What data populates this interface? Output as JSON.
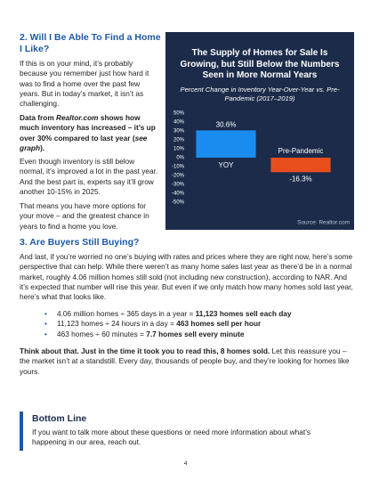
{
  "section2": {
    "heading": "2. Will I Be Able To Find a Home I Like?",
    "paragraphs": [
      [
        "If this is on your mind, it’s probably because you remember just how hard it was to find a home over the past few years. But in today’s market, it isn’t as challenging."
      ],
      [
        "Data from ",
        "Realtor.com",
        " shows how much inventory has increased – it’s up over 30% compared to last year (",
        "see graph",
        ")."
      ],
      [
        "Even though inventory is still below normal, it’s improved a lot in the past year. And the best part is, experts say it’ll grow another 10-15% in 2025."
      ],
      [
        "That means you have more options for your move – and  the greatest chance in years to find a home you love."
      ]
    ]
  },
  "chart": {
    "type": "bar",
    "title": "The Supply of Homes for Sale Is Growing, but Still Below the Numbers Seen in More Normal Years",
    "subtitle": "Percent Change in Inventory Year-Over-Year vs. Pre-Pandemic (2017–2019)",
    "categories": [
      "YOY",
      "Pre-Pandemic"
    ],
    "values": [
      30.6,
      -16.3
    ],
    "value_labels": [
      "30.6%",
      "-16.3%"
    ],
    "colors": [
      "#1a8cf0",
      "#e84f1c"
    ],
    "ylim": [
      -50,
      50
    ],
    "yticks": [
      {
        "value": 50,
        "label": "50%"
      },
      {
        "value": 40,
        "label": "40%"
      },
      {
        "value": 30,
        "label": "30%"
      },
      {
        "value": 20,
        "label": "20%"
      },
      {
        "value": 10,
        "label": "10%"
      },
      {
        "value": 0,
        "label": "0%"
      },
      {
        "value": -10,
        "label": "-10%"
      },
      {
        "value": -20,
        "label": "-20%"
      },
      {
        "value": -30,
        "label": "-30%"
      },
      {
        "value": -40,
        "label": "-40%"
      },
      {
        "value": -50,
        "label": "-50%"
      }
    ],
    "source": "Source: Realtor.com"
  },
  "section3": {
    "heading": "3. Are Buyers Still Buying?",
    "paragraph": "And last, if you’re worried no one’s buying with rates and prices where they are right now, here’s some perspective that can help. While there weren’t as many home sales last year as there’d be in a normal market, roughly 4.06 million homes still sold (not including new construction), according to NAR. And it’s expected that number will rise this year. But even if we only match how many homes sold last year, here’s what that looks like.",
    "bullets": [
      [
        "4.06 million homes ÷ 365 days in a year = ",
        "11,123 homes sell each day"
      ],
      [
        "11,123 homes ÷ 24 hours in a day = ",
        "463 homes sell per hour"
      ],
      [
        "463 homes ÷ 60 minutes = ",
        "7.7 homes sell every minute"
      ]
    ],
    "closing": [
      "Think about that. Just in the time it took you to read this, 8 homes sold.",
      " Let this reassure you – the market isn’t at a standstill. Every day, thousands of people buy, and they’re looking for homes like yours."
    ]
  },
  "bottom_line": {
    "heading": "Bottom Line",
    "text": "If you want to talk more about these questions or need more information about what’s happening in our area, reach out."
  },
  "page_number": "4"
}
